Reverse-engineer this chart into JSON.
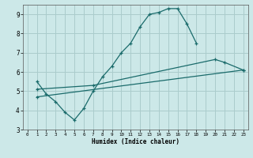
{
  "xlabel": "Humidex (Indice chaleur)",
  "xlim": [
    -0.5,
    23.5
  ],
  "ylim": [
    3,
    9.5
  ],
  "yticks": [
    3,
    4,
    5,
    6,
    7,
    8,
    9
  ],
  "xticks": [
    0,
    1,
    2,
    3,
    4,
    5,
    6,
    7,
    8,
    9,
    10,
    11,
    12,
    13,
    14,
    15,
    16,
    17,
    18,
    19,
    20,
    21,
    22,
    23
  ],
  "bg_color": "#cce8e8",
  "grid_color": "#aacccc",
  "line_color": "#1a6b6b",
  "line1_x": [
    1,
    2,
    3,
    4,
    5,
    6,
    7,
    8,
    9,
    10,
    11,
    12,
    13,
    14,
    15,
    16,
    17,
    18
  ],
  "line1_y": [
    5.5,
    4.85,
    4.45,
    3.9,
    3.5,
    4.1,
    5.0,
    5.75,
    6.3,
    7.0,
    7.5,
    8.35,
    9.0,
    9.1,
    9.3,
    9.3,
    8.5,
    7.5
  ],
  "line2_x": [
    1,
    7,
    20,
    21,
    23
  ],
  "line2_y": [
    5.1,
    5.3,
    6.65,
    6.5,
    6.1
  ],
  "line3_x": [
    1,
    23
  ],
  "line3_y": [
    4.7,
    6.1
  ]
}
